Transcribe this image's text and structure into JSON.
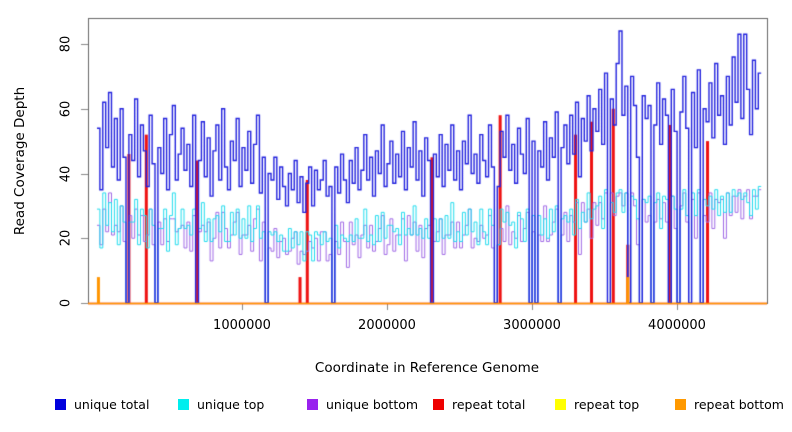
{
  "figure": {
    "background_color": "#ffffff",
    "box_color": "#666666",
    "tick_color": "#888888",
    "text_color": "#000000"
  },
  "chart_data": {
    "type": "line",
    "subtype": "step",
    "title": "",
    "xlabel": "Coordinate in Reference Genome",
    "ylabel": "Read Coverage Depth",
    "grid": false,
    "legend_position": "bottom",
    "x_start": 0,
    "x_step": 20000,
    "n_points": 229,
    "xlim": [
      -62000,
      4620000
    ],
    "ylim": [
      0,
      88
    ],
    "x_ticks": [
      1000000,
      2000000,
      3000000,
      4000000
    ],
    "x_tick_labels": [
      "1000000",
      "2000000",
      "3000000",
      "4000000"
    ],
    "y_ticks": [
      0,
      20,
      40,
      60,
      80
    ],
    "y_tick_labels": [
      "0",
      "20",
      "40",
      "60",
      "80"
    ],
    "series": [
      {
        "name": "unique total",
        "color": "#2222dd",
        "legend_color": "#0000dd",
        "line_width": 1.4,
        "values": [
          54,
          35,
          62,
          48,
          65,
          42,
          57,
          38,
          60,
          45,
          0,
          52,
          44,
          63,
          39,
          55,
          47,
          36,
          58,
          43,
          0,
          48,
          40,
          57,
          35,
          52,
          61,
          38,
          46,
          54,
          41,
          49,
          36,
          58,
          0,
          44,
          56,
          39,
          51,
          33,
          47,
          55,
          38,
          60,
          42,
          35,
          50,
          44,
          57,
          36,
          48,
          41,
          53,
          37,
          49,
          58,
          34,
          45,
          0,
          40,
          38,
          45,
          32,
          42,
          36,
          30,
          40,
          35,
          44,
          31,
          39,
          28,
          37,
          42,
          30,
          41,
          35,
          38,
          44,
          33,
          36,
          0,
          42,
          34,
          46,
          38,
          31,
          44,
          37,
          48,
          35,
          41,
          52,
          38,
          45,
          33,
          47,
          40,
          55,
          36,
          43,
          50,
          37,
          46,
          39,
          53,
          35,
          48,
          42,
          56,
          38,
          47,
          33,
          51,
          44,
          0,
          46,
          39,
          52,
          36,
          49,
          41,
          55,
          38,
          47,
          35,
          50,
          43,
          58,
          40,
          46,
          37,
          52,
          44,
          39,
          55,
          42,
          0,
          36,
          53,
          45,
          58,
          41,
          49,
          37,
          54,
          46,
          40,
          57,
          0,
          50,
          0,
          47,
          42,
          56,
          38,
          51,
          45,
          59,
          0,
          48,
          55,
          43,
          58,
          46,
          62,
          39,
          57,
          50,
          64,
          47,
          60,
          53,
          66,
          49,
          71,
          0,
          63,
          55,
          74,
          84,
          58,
          67,
          0,
          70,
          61,
          45,
          0,
          64,
          57,
          61,
          0,
          55,
          68,
          49,
          63,
          58,
          0,
          66,
          53,
          0,
          59,
          70,
          54,
          0,
          65,
          48,
          72,
          0,
          60,
          56,
          68,
          51,
          74,
          58,
          64,
          49,
          70,
          55,
          76,
          62,
          83,
          57,
          83,
          66,
          52,
          75,
          60,
          71
        ]
      },
      {
        "name": "unique top",
        "color": "#22dcee",
        "legend_color": "#00eeee",
        "line_width": 1,
        "values": [
          29,
          17,
          34,
          24,
          31,
          22,
          32,
          18,
          30,
          25,
          0,
          25,
          25,
          32,
          18,
          29,
          27,
          17,
          29,
          24,
          0,
          23,
          23,
          29,
          16,
          27,
          34,
          18,
          23,
          29,
          23,
          24,
          21,
          29,
          0,
          23,
          31,
          19,
          26,
          19,
          26,
          27,
          22,
          30,
          19,
          19,
          28,
          21,
          29,
          20,
          26,
          20,
          30,
          19,
          23,
          30,
          20,
          22,
          0,
          22,
          21,
          22,
          19,
          21,
          16,
          16,
          23,
          17,
          22,
          18,
          22,
          13,
          22,
          21,
          13,
          22,
          21,
          18,
          22,
          19,
          20,
          0,
          24,
          17,
          21,
          20,
          19,
          21,
          19,
          26,
          20,
          20,
          29,
          19,
          21,
          18,
          27,
          19,
          28,
          20,
          24,
          24,
          22,
          23,
          18,
          28,
          21,
          23,
          21,
          30,
          21,
          23,
          20,
          26,
          20,
          0,
          26,
          19,
          26,
          20,
          27,
          20,
          31,
          19,
          22,
          19,
          28,
          21,
          29,
          22,
          25,
          18,
          29,
          22,
          18,
          29,
          24,
          0,
          18,
          29,
          25,
          28,
          24,
          25,
          17,
          28,
          26,
          19,
          29,
          0,
          27,
          0,
          27,
          21,
          26,
          20,
          29,
          22,
          30,
          0,
          26,
          27,
          25,
          29,
          21,
          32,
          23,
          28,
          25,
          34,
          26,
          29,
          30,
          33,
          23,
          35,
          0,
          31,
          28,
          34,
          35,
          28,
          34,
          0,
          33,
          32,
          26,
          0,
          32,
          31,
          33,
          0,
          31,
          34,
          23,
          33,
          32,
          0,
          33,
          29,
          0,
          29,
          35,
          27,
          0,
          34,
          27,
          35,
          0,
          32,
          30,
          33,
          29,
          35,
          27,
          33,
          28,
          34,
          28,
          35,
          33,
          34,
          32,
          34,
          31,
          27,
          35,
          29,
          36
        ]
      },
      {
        "name": "unique bottom",
        "color": "#a06ae6",
        "legend_color": "#9922ee",
        "line_width": 1,
        "values": [
          24,
          18,
          29,
          22,
          34,
          21,
          24,
          22,
          30,
          19,
          0,
          27,
          20,
          29,
          21,
          27,
          19,
          21,
          29,
          18,
          0,
          25,
          18,
          26,
          19,
          26,
          26,
          22,
          23,
          24,
          17,
          25,
          16,
          27,
          0,
          22,
          24,
          22,
          25,
          13,
          20,
          28,
          17,
          28,
          23,
          17,
          21,
          25,
          28,
          15,
          21,
          21,
          24,
          16,
          26,
          29,
          13,
          25,
          0,
          17,
          16,
          23,
          14,
          19,
          20,
          15,
          16,
          20,
          22,
          12,
          16,
          15,
          16,
          19,
          17,
          20,
          13,
          22,
          22,
          13,
          15,
          0,
          19,
          15,
          25,
          19,
          11,
          25,
          18,
          21,
          14,
          21,
          24,
          17,
          24,
          16,
          19,
          23,
          27,
          15,
          18,
          26,
          16,
          21,
          21,
          26,
          13,
          27,
          21,
          25,
          16,
          24,
          14,
          23,
          24,
          0,
          19,
          22,
          26,
          15,
          21,
          21,
          25,
          17,
          25,
          17,
          21,
          24,
          29,
          17,
          20,
          19,
          24,
          20,
          21,
          27,
          17,
          0,
          18,
          23,
          19,
          30,
          18,
          22,
          20,
          27,
          19,
          23,
          28,
          0,
          22,
          0,
          21,
          19,
          30,
          19,
          21,
          25,
          29,
          0,
          21,
          28,
          19,
          27,
          25,
          31,
          15,
          31,
          25,
          29,
          20,
          31,
          24,
          31,
          26,
          34,
          0,
          34,
          27,
          33,
          34,
          30,
          34,
          0,
          34,
          30,
          18,
          0,
          32,
          25,
          27,
          0,
          25,
          32,
          26,
          31,
          25,
          0,
          33,
          23,
          0,
          30,
          34,
          25,
          0,
          32,
          20,
          34,
          0,
          27,
          25,
          34,
          23,
          32,
          31,
          32,
          20,
          34,
          27,
          33,
          28,
          35,
          26,
          33,
          35,
          26,
          33,
          33,
          35
        ]
      },
      {
        "name": "repeat total",
        "color": "#ee1111",
        "legend_color": "#ee0000",
        "line_width": 1.6,
        "baseline": 0,
        "spikes": [
          {
            "x": 220000,
            "v": 46
          },
          {
            "x": 340000,
            "v": 52
          },
          {
            "x": 690000,
            "v": 44
          },
          {
            "x": 1400000,
            "v": 8
          },
          {
            "x": 1450000,
            "v": 38
          },
          {
            "x": 2310000,
            "v": 45
          },
          {
            "x": 2780000,
            "v": 58
          },
          {
            "x": 3300000,
            "v": 52
          },
          {
            "x": 3410000,
            "v": 56
          },
          {
            "x": 3560000,
            "v": 60
          },
          {
            "x": 3660000,
            "v": 18
          },
          {
            "x": 3950000,
            "v": 55
          },
          {
            "x": 4210000,
            "v": 50
          }
        ]
      },
      {
        "name": "repeat top",
        "color": "#ffee00",
        "legend_color": "#ffff00",
        "line_width": 1.2,
        "baseline": 0,
        "spikes": []
      },
      {
        "name": "repeat bottom",
        "color": "#ff9500",
        "legend_color": "#ff9900",
        "line_width": 1.4,
        "baseline": 0,
        "spikes": [
          {
            "x": 10000,
            "v": 8
          },
          {
            "x": 3660000,
            "v": 8
          }
        ]
      }
    ]
  }
}
